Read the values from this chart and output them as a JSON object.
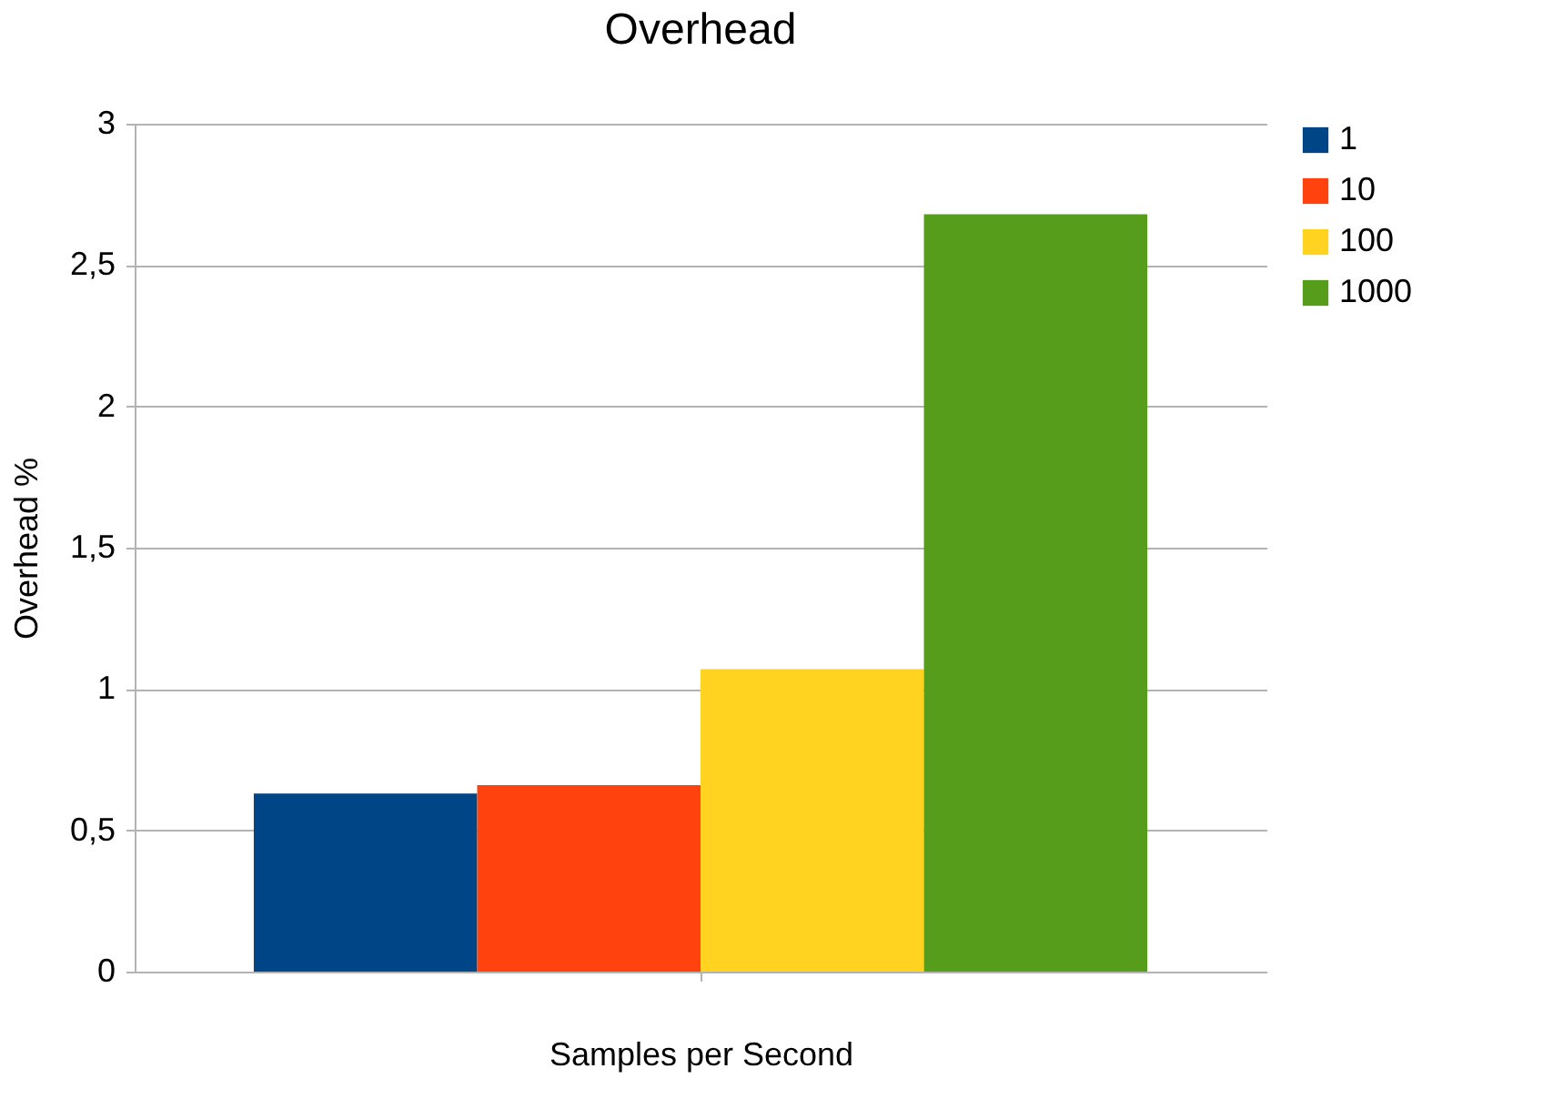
{
  "chart_data": {
    "type": "bar",
    "title": "Overhead",
    "xlabel": "Samples per Second",
    "ylabel": "Overhead %",
    "categories": [
      null
    ],
    "series": [
      {
        "name": "1",
        "color": "#004586",
        "values": [
          0.63
        ]
      },
      {
        "name": "10",
        "color": "#ff420e",
        "values": [
          0.66
        ]
      },
      {
        "name": "100",
        "color": "#ffd320",
        "values": [
          1.07
        ]
      },
      {
        "name": "1000",
        "color": "#579d1c",
        "values": [
          2.68
        ]
      }
    ],
    "ylim": [
      0,
      3
    ],
    "yticks": [
      0,
      {
        "value": 0.5,
        "label": "0,5"
      },
      1,
      {
        "value": 1.5,
        "label": "1,5"
      },
      2,
      {
        "value": 2.5,
        "label": "2,5"
      },
      3
    ],
    "grid": "y",
    "legend": "right"
  }
}
